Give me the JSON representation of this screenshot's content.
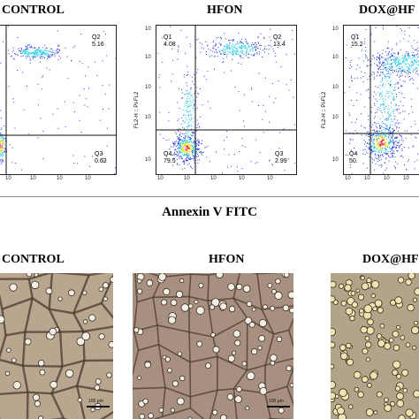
{
  "flow": {
    "panels": [
      {
        "title": "CONTROL",
        "y_axis_label": "",
        "quadrants": {
          "q1": {
            "name": "",
            "value": ""
          },
          "q2": {
            "name": "Q2",
            "value": "5.16"
          },
          "q3": {
            "name": "Q3",
            "value": "0.62"
          },
          "q4": {
            "name": "",
            "value": ""
          }
        },
        "x_ticks": [
          "10",
          "10",
          "10",
          "10"
        ]
      },
      {
        "title": "HFON",
        "y_axis_label": "FL2-H :: PI-FL2",
        "quadrants": {
          "q1": {
            "name": "Q1",
            "value": "4.08"
          },
          "q2": {
            "name": "Q2",
            "value": "13.4"
          },
          "q3": {
            "name": "Q3",
            "value": "2.99"
          },
          "q4": {
            "name": "Q4",
            "value": "79.5"
          }
        },
        "y_ticks": [
          "10",
          "10",
          "10",
          "10",
          "10"
        ],
        "x_ticks": [
          "10",
          "10",
          "10",
          "10",
          "10"
        ]
      },
      {
        "title": "DOX@HF",
        "y_axis_label": "FL2-H :: PI-FL2",
        "quadrants": {
          "q1": {
            "name": "Q1",
            "value": "15.2"
          },
          "q2": {
            "name": "",
            "value": ""
          },
          "q3": {
            "name": "",
            "value": ""
          },
          "q4": {
            "name": "Q4",
            "value": "50."
          }
        },
        "y_ticks": [
          "10",
          "10",
          "10",
          "10",
          "10"
        ],
        "x_ticks": [
          "10",
          "10",
          "10",
          "10"
        ]
      }
    ],
    "x_axis_title": "Annexin V FITC"
  },
  "microscopy": {
    "panels": [
      {
        "title": "CONTROL",
        "scale_label": "100 μm"
      },
      {
        "title": "HFON",
        "scale_label": "100 μm"
      },
      {
        "title": "DOX@HF",
        "scale_label": ""
      }
    ]
  },
  "colors": {
    "background_micrograph_control": "#b8a68f",
    "background_micrograph_hfon": "#a89080",
    "background_micrograph_dox": "#b2a48a",
    "density_low": "#2035d8",
    "density_mid": "#27d0e0",
    "density_high": "#f0e020",
    "density_peak": "#e83020"
  }
}
